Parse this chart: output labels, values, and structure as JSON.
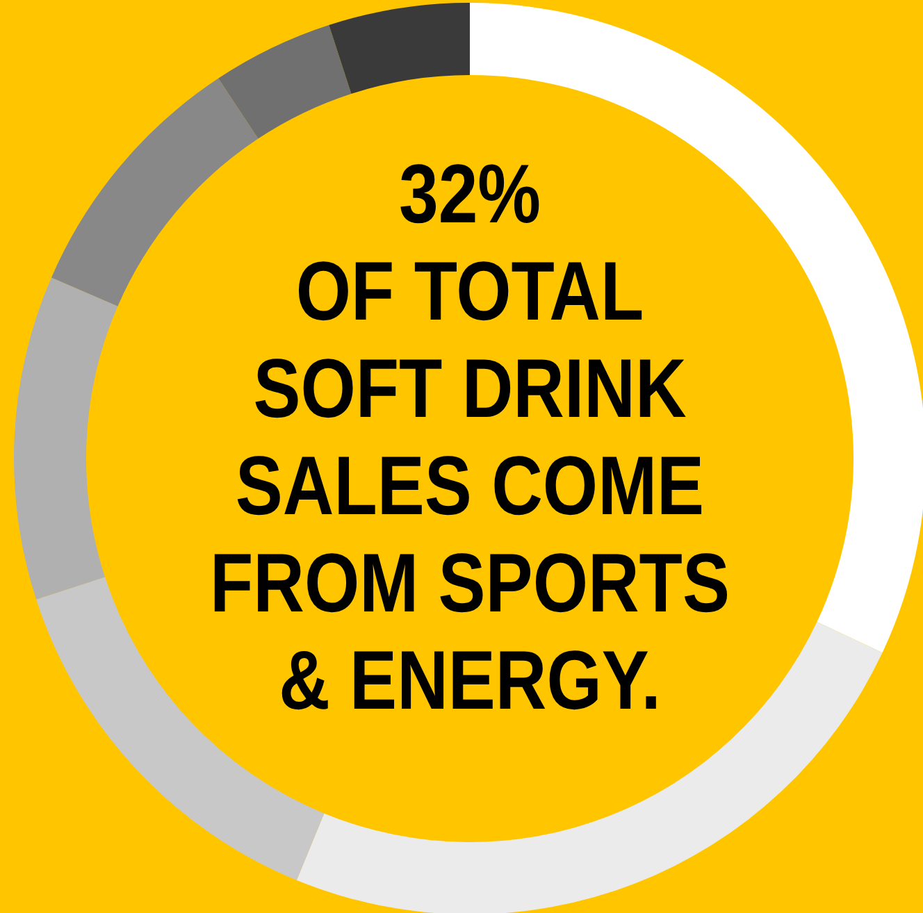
{
  "chart_data": {
    "type": "donut",
    "categories": [
      null,
      null,
      null,
      null,
      null,
      null,
      null
    ],
    "values": [
      32,
      24.2,
      13.8,
      11.5,
      9.2,
      4.3,
      5.0
    ],
    "colors": [
      "#ffffff",
      "#ebebeb",
      "#c8c8c8",
      "#b0b0b0",
      "#888888",
      "#707070",
      "#3a3a3a"
    ],
    "annotations": [
      "32%",
      "OF TOTAL",
      "SOFT DRINK",
      "SALES COME",
      "FROM SPORTS",
      "& ENERGY."
    ]
  }
}
